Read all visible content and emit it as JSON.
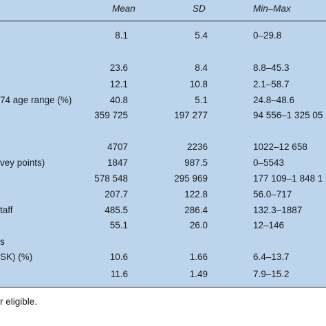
{
  "header": {
    "mean": "Mean",
    "sd": "SD",
    "minmax": "Min–Max"
  },
  "rows": [
    {
      "label": "",
      "mean": "8.1",
      "sd": "5.4",
      "minmax": "0–29.8"
    },
    {
      "label": "",
      "mean": "23.6",
      "sd": "8.4",
      "minmax": "8.8–45.3"
    },
    {
      "label": "",
      "mean": "12.1",
      "sd": "10.8",
      "minmax": "2.1–58.7"
    },
    {
      "label": "74 age range (%)",
      "mean": "40.8",
      "sd": "5.1",
      "minmax": "24.8–48.6"
    },
    {
      "label": "",
      "mean": "359 725",
      "sd": "197 277",
      "minmax": "94 556–1 325 05"
    },
    {
      "label": "",
      "mean": "4707",
      "sd": "2236",
      "minmax": "1022–12 658"
    },
    {
      "label": "vey points)",
      "mean": "1847",
      "sd": "987.5",
      "minmax": "0–5543"
    },
    {
      "label": "",
      "mean": "578 548",
      "sd": "295 969",
      "minmax": "177 109–1 848 1"
    },
    {
      "label": "",
      "mean": "207.7",
      "sd": "122.8",
      "minmax": "56.0–717"
    },
    {
      "label": "taff",
      "mean": "485.5",
      "sd": "286.4",
      "minmax": "132.3–1887"
    },
    {
      "label": "",
      "mean": "55.1",
      "sd": "26.0",
      "minmax": "12–146"
    },
    {
      "label": "s",
      "mean": "",
      "sd": "",
      "minmax": ""
    },
    {
      "label": "SK) (%)",
      "mean": "10.6",
      "sd": "1.66",
      "minmax": "6.4–13.7"
    },
    {
      "label": "",
      "mean": "11.6",
      "sd": "1.49",
      "minmax": "7.9–15.2"
    }
  ],
  "footnote": "r eligible."
}
